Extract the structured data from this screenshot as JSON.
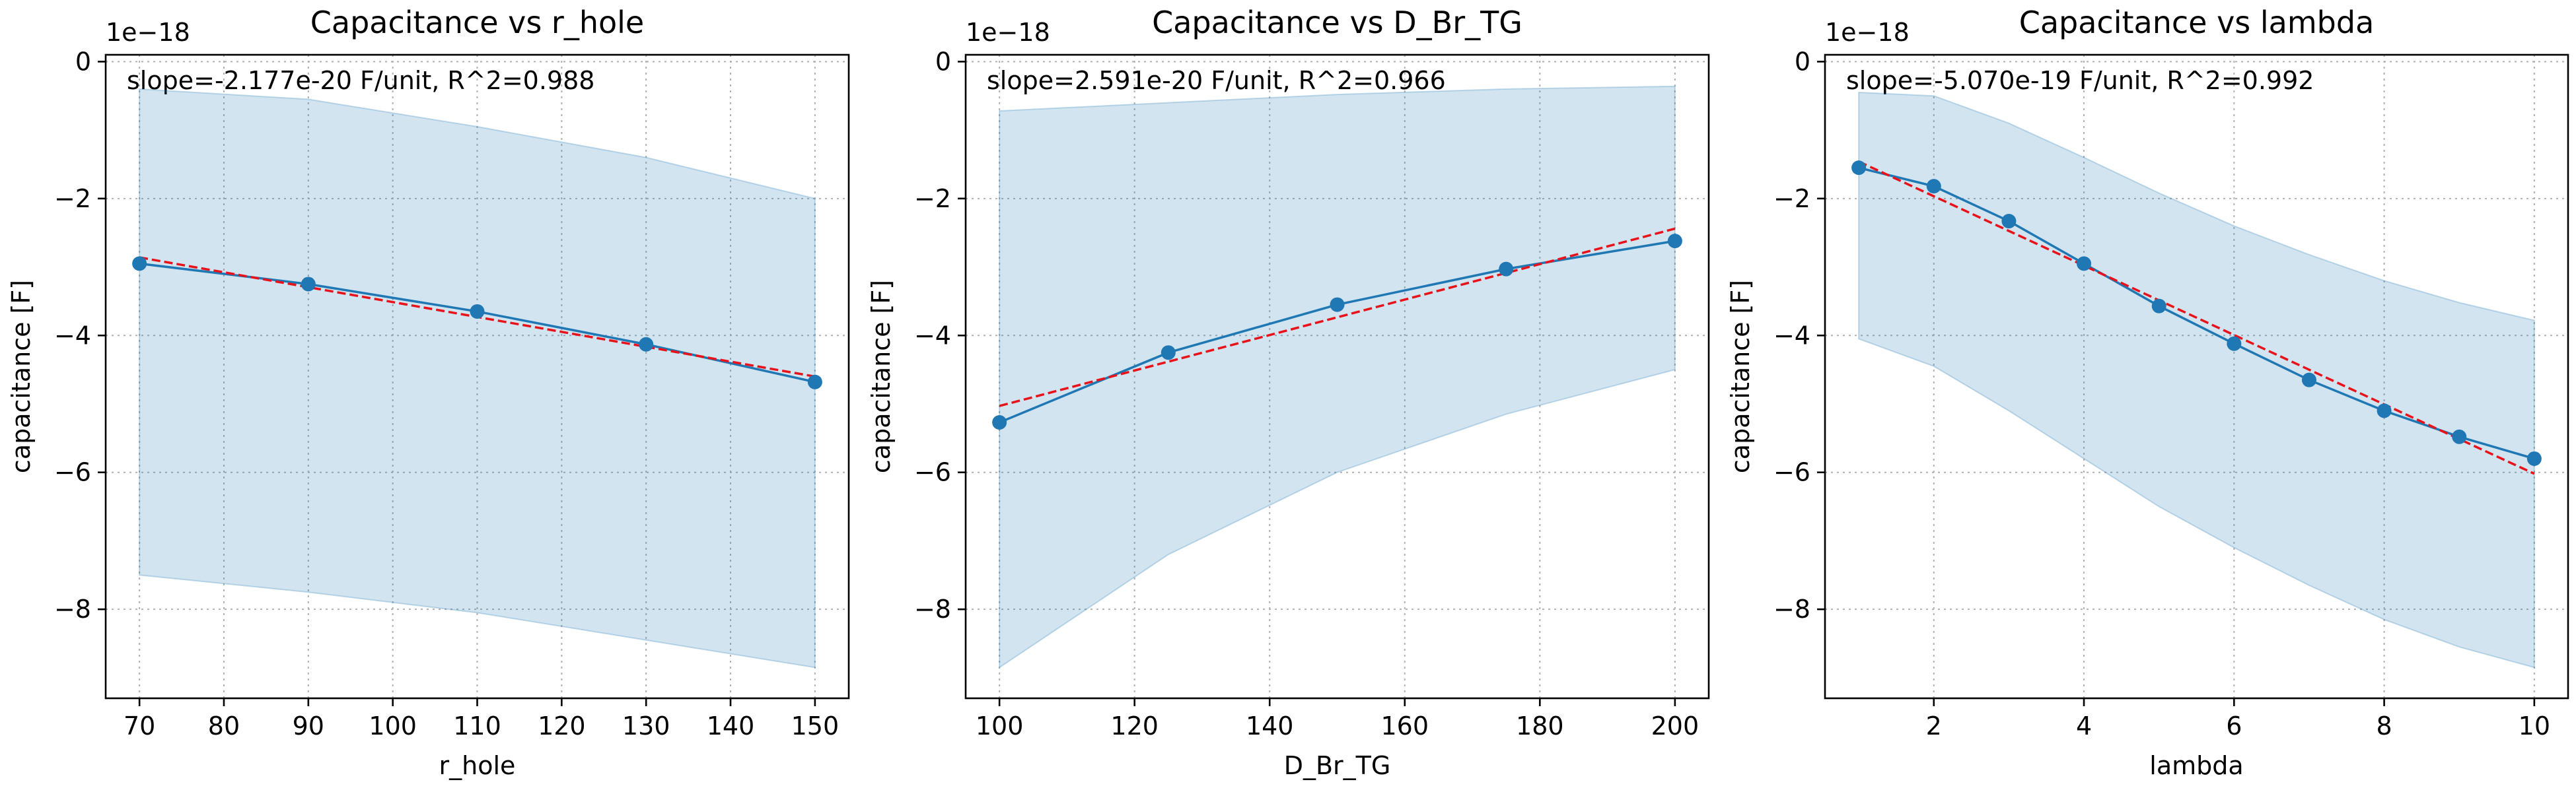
{
  "chart_data": [
    {
      "type": "line",
      "title": "Capacitance vs r_hole",
      "xlabel": "r_hole",
      "ylabel": "capacitance [F]",
      "y_offset_label": "1e−18",
      "y_multiplier": 1e-18,
      "annotation": "slope=-2.177e-20 F/unit, R^2=0.988",
      "xlim": [
        66,
        154
      ],
      "ylim": [
        -9.3,
        0.1
      ],
      "xticks": [
        70,
        80,
        90,
        100,
        110,
        120,
        130,
        140,
        150
      ],
      "yticks": [
        0,
        -2,
        -4,
        -6,
        -8
      ],
      "grid": true,
      "series": [
        {
          "x": [
            70,
            90,
            110,
            130,
            150
          ],
          "values": [
            -2.95,
            -3.25,
            -3.65,
            -4.13,
            -4.68
          ]
        }
      ],
      "band": {
        "x": [
          70,
          90,
          110,
          130,
          150
        ],
        "upper": [
          -0.4,
          -0.55,
          -0.95,
          -1.4,
          -2.0
        ],
        "lower": [
          -7.5,
          -7.75,
          -8.05,
          -8.45,
          -8.85
        ]
      },
      "fit": {
        "x": [
          70,
          150
        ],
        "values": [
          -2.86,
          -4.6
        ]
      }
    },
    {
      "type": "line",
      "title": "Capacitance vs D_Br_TG",
      "xlabel": "D_Br_TG",
      "ylabel": "capacitance [F]",
      "y_offset_label": "1e−18",
      "y_multiplier": 1e-18,
      "annotation": "slope=2.591e-20 F/unit, R^2=0.966",
      "xlim": [
        95,
        205
      ],
      "ylim": [
        -9.3,
        0.1
      ],
      "xticks": [
        100,
        120,
        140,
        160,
        180,
        200
      ],
      "yticks": [
        0,
        -2,
        -4,
        -6,
        -8
      ],
      "grid": true,
      "series": [
        {
          "x": [
            100,
            125,
            150,
            175,
            200
          ],
          "values": [
            -5.27,
            -4.25,
            -3.55,
            -3.03,
            -2.62
          ]
        }
      ],
      "band": {
        "x": [
          100,
          125,
          150,
          175,
          200
        ],
        "upper": [
          -0.72,
          -0.6,
          -0.48,
          -0.4,
          -0.36
        ],
        "lower": [
          -8.85,
          -7.2,
          -6.0,
          -5.15,
          -4.5
        ]
      },
      "fit": {
        "x": [
          100,
          200
        ],
        "values": [
          -5.03,
          -2.44
        ]
      }
    },
    {
      "type": "line",
      "title": "Capacitance vs lambda",
      "xlabel": "lambda",
      "ylabel": "capacitance [F]",
      "y_offset_label": "1e−18",
      "y_multiplier": 1e-18,
      "annotation": "slope=-5.070e-19 F/unit, R^2=0.992",
      "xlim": [
        0.55,
        10.45
      ],
      "ylim": [
        -9.3,
        0.1
      ],
      "xticks": [
        2,
        4,
        6,
        8,
        10
      ],
      "yticks": [
        0,
        -2,
        -4,
        -6,
        -8
      ],
      "grid": true,
      "series": [
        {
          "x": [
            1,
            2,
            3,
            4,
            5,
            6,
            7,
            8,
            9,
            10
          ],
          "values": [
            -1.55,
            -1.82,
            -2.33,
            -2.95,
            -3.57,
            -4.12,
            -4.65,
            -5.1,
            -5.48,
            -5.8
          ]
        }
      ],
      "band": {
        "x": [
          1,
          2,
          3,
          4,
          5,
          6,
          7,
          8,
          9,
          10
        ],
        "upper": [
          -0.45,
          -0.5,
          -0.9,
          -1.4,
          -1.92,
          -2.4,
          -2.82,
          -3.2,
          -3.52,
          -3.78
        ],
        "lower": [
          -4.05,
          -4.45,
          -5.1,
          -5.8,
          -6.5,
          -7.1,
          -7.65,
          -8.15,
          -8.55,
          -8.85
        ]
      },
      "fit": {
        "x": [
          1,
          10
        ],
        "values": [
          -1.46,
          -6.02
        ]
      }
    }
  ]
}
